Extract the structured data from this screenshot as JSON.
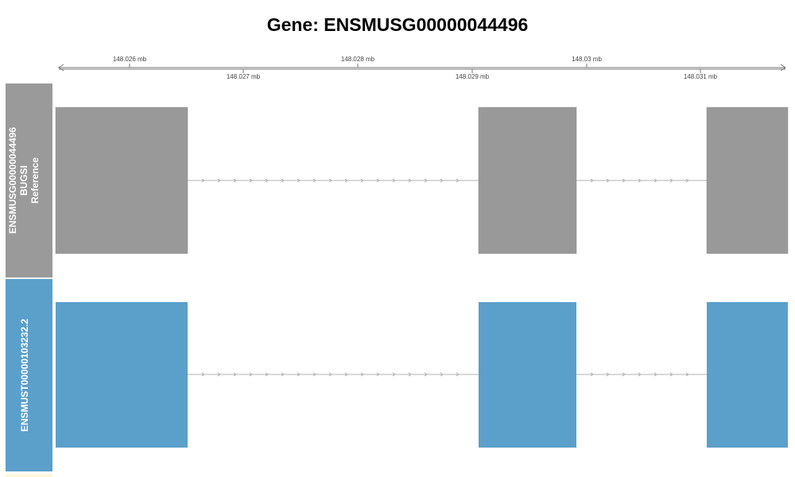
{
  "title": "Gene: ENSMUSG00000044496",
  "axis": {
    "unit": "mb",
    "ticks_top": [
      "148.026 mb",
      "148.028 mb",
      "148.03 mb"
    ],
    "ticks_bottom": [
      "148.027 mb",
      "148.029 mb",
      "148.031 mb"
    ]
  },
  "tracks": [
    {
      "label_lines": [
        "ENSMUSG00000044496",
        "BUGSI",
        "Reference"
      ],
      "panel_color": "#9a9a9a",
      "exon_color": "#999999"
    },
    {
      "label_lines": [
        "ENSMUST00000103232.2"
      ],
      "panel_color": "#5b9fcb",
      "exon_color": "#5b9fcb"
    }
  ],
  "colors": {
    "intron_line": "#b3b3b3",
    "axis_line": "#777777"
  }
}
